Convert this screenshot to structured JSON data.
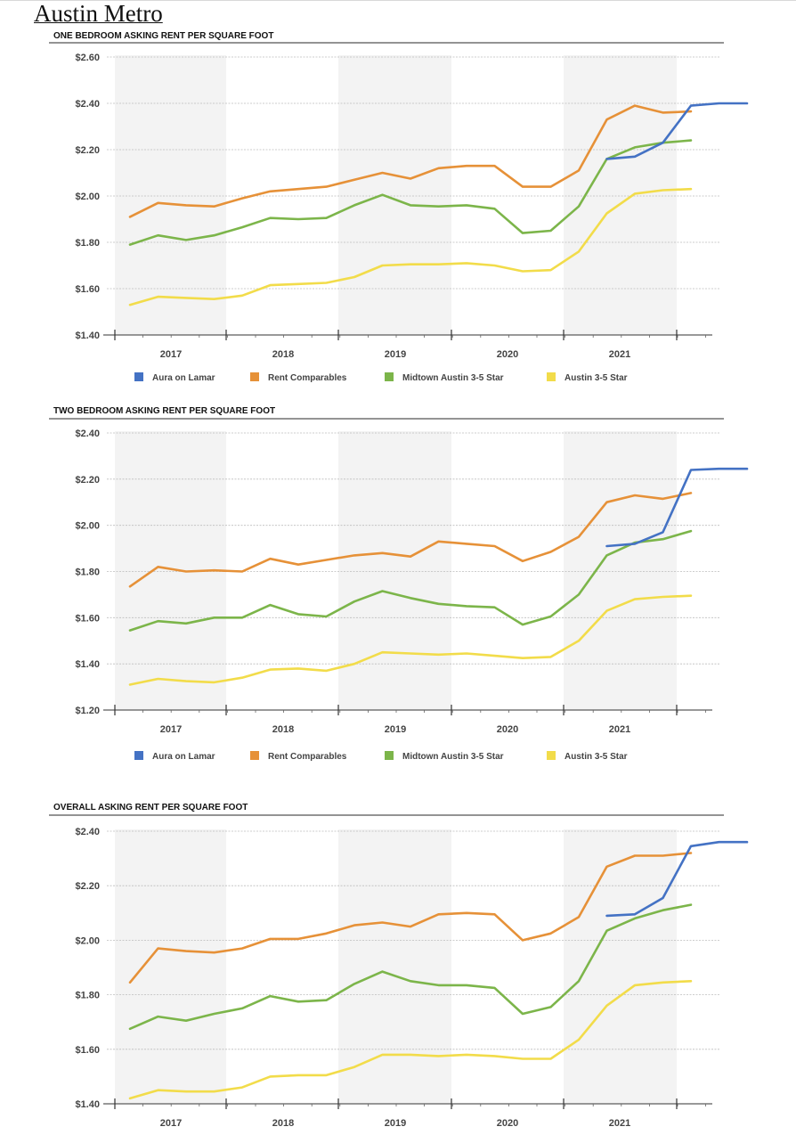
{
  "page": {
    "title": "Austin Metro"
  },
  "chart_data": [
    {
      "type": "line",
      "title": "ONE BEDROOM ASKING RENT PER SQUARE FOOT",
      "x": [
        "2016Q3",
        "2016Q4",
        "2017Q1",
        "2017Q2",
        "2017Q3",
        "2017Q4",
        "2018Q1",
        "2018Q2",
        "2018Q3",
        "2018Q4",
        "2019Q1",
        "2019Q2",
        "2019Q3",
        "2019Q4",
        "2020Q1",
        "2020Q2",
        "2020Q3",
        "2020Q4",
        "2021Q1",
        "2021Q2",
        "2021Q3",
        "2021Q4",
        "2022Q1"
      ],
      "year_labels": [
        "2017",
        "2018",
        "2019",
        "2020",
        "2021"
      ],
      "ylim": [
        1.4,
        2.6
      ],
      "yticks": [
        1.4,
        1.6,
        1.8,
        2.0,
        2.2,
        2.4,
        2.6
      ],
      "ytick_labels": [
        "$1.40",
        "$1.60",
        "$1.80",
        "$2.00",
        "$2.20",
        "$2.40",
        "$2.60"
      ],
      "series": [
        {
          "name": "Aura on Lamar",
          "color": "#4472c4",
          "values": [
            null,
            null,
            null,
            null,
            null,
            null,
            null,
            null,
            null,
            null,
            null,
            null,
            null,
            null,
            null,
            null,
            null,
            2.16,
            2.17,
            2.23,
            2.39,
            2.4,
            2.4
          ]
        },
        {
          "name": "Rent Comparables",
          "color": "#e69138",
          "values": [
            1.91,
            1.97,
            1.96,
            1.955,
            1.99,
            2.02,
            2.03,
            2.04,
            2.07,
            2.1,
            2.075,
            2.12,
            2.13,
            2.13,
            2.04,
            2.04,
            2.11,
            2.33,
            2.39,
            2.36,
            2.365,
            null,
            null
          ]
        },
        {
          "name": "Midtown Austin 3-5 Star",
          "color": "#7cb54a",
          "values": [
            1.79,
            1.83,
            1.81,
            1.83,
            1.865,
            1.905,
            1.9,
            1.905,
            1.96,
            2.005,
            1.96,
            1.955,
            1.96,
            1.945,
            1.84,
            1.85,
            1.955,
            2.16,
            2.21,
            2.23,
            2.24,
            null,
            null
          ]
        },
        {
          "name": "Austin 3-5 Star",
          "color": "#f2dc4a",
          "values": [
            1.53,
            1.565,
            1.56,
            1.555,
            1.57,
            1.615,
            1.62,
            1.625,
            1.65,
            1.7,
            1.705,
            1.705,
            1.71,
            1.7,
            1.675,
            1.68,
            1.76,
            1.925,
            2.01,
            2.025,
            2.03,
            null,
            null
          ]
        }
      ]
    },
    {
      "type": "line",
      "title": "TWO BEDROOM ASKING RENT PER SQUARE FOOT",
      "x": [
        "2016Q3",
        "2016Q4",
        "2017Q1",
        "2017Q2",
        "2017Q3",
        "2017Q4",
        "2018Q1",
        "2018Q2",
        "2018Q3",
        "2018Q4",
        "2019Q1",
        "2019Q2",
        "2019Q3",
        "2019Q4",
        "2020Q1",
        "2020Q2",
        "2020Q3",
        "2020Q4",
        "2021Q1",
        "2021Q2",
        "2021Q3",
        "2021Q4",
        "2022Q1"
      ],
      "year_labels": [
        "2017",
        "2018",
        "2019",
        "2020",
        "2021"
      ],
      "ylim": [
        1.2,
        2.4
      ],
      "yticks": [
        1.2,
        1.4,
        1.6,
        1.8,
        2.0,
        2.2,
        2.4
      ],
      "ytick_labels": [
        "$1.20",
        "$1.40",
        "$1.60",
        "$1.80",
        "$2.00",
        "$2.20",
        "$2.40"
      ],
      "series": [
        {
          "name": "Aura on Lamar",
          "color": "#4472c4",
          "values": [
            null,
            null,
            null,
            null,
            null,
            null,
            null,
            null,
            null,
            null,
            null,
            null,
            null,
            null,
            null,
            null,
            null,
            1.91,
            1.92,
            1.97,
            2.24,
            2.245,
            2.245
          ]
        },
        {
          "name": "Rent Comparables",
          "color": "#e69138",
          "values": [
            1.735,
            1.82,
            1.8,
            1.805,
            1.8,
            1.855,
            1.83,
            1.85,
            1.87,
            1.88,
            1.865,
            1.93,
            1.92,
            1.91,
            1.845,
            1.885,
            1.95,
            2.1,
            2.13,
            2.115,
            2.14,
            null,
            null
          ]
        },
        {
          "name": "Midtown Austin 3-5 Star",
          "color": "#7cb54a",
          "values": [
            1.545,
            1.585,
            1.575,
            1.6,
            1.6,
            1.655,
            1.615,
            1.605,
            1.67,
            1.715,
            1.685,
            1.66,
            1.65,
            1.645,
            1.57,
            1.605,
            1.7,
            1.87,
            1.925,
            1.94,
            1.975,
            null,
            null
          ]
        },
        {
          "name": "Austin 3-5 Star",
          "color": "#f2dc4a",
          "values": [
            1.31,
            1.335,
            1.325,
            1.32,
            1.34,
            1.375,
            1.38,
            1.37,
            1.4,
            1.45,
            1.445,
            1.44,
            1.445,
            1.435,
            1.425,
            1.43,
            1.5,
            1.63,
            1.68,
            1.69,
            1.695,
            null,
            null
          ]
        }
      ]
    },
    {
      "type": "line",
      "title": "OVERALL ASKING RENT PER SQUARE FOOT",
      "x": [
        "2016Q3",
        "2016Q4",
        "2017Q1",
        "2017Q2",
        "2017Q3",
        "2017Q4",
        "2018Q1",
        "2018Q2",
        "2018Q3",
        "2018Q4",
        "2019Q1",
        "2019Q2",
        "2019Q3",
        "2019Q4",
        "2020Q1",
        "2020Q2",
        "2020Q3",
        "2020Q4",
        "2021Q1",
        "2021Q2",
        "2021Q3",
        "2021Q4",
        "2022Q1"
      ],
      "year_labels": [
        "2017",
        "2018",
        "2019",
        "2020",
        "2021"
      ],
      "ylim": [
        1.4,
        2.4
      ],
      "yticks": [
        1.4,
        1.6,
        1.8,
        2.0,
        2.2,
        2.4
      ],
      "ytick_labels": [
        "$1.40",
        "$1.60",
        "$1.80",
        "$2.00",
        "$2.20",
        "$2.40"
      ],
      "series": [
        {
          "name": "Aura on Lamar",
          "color": "#4472c4",
          "values": [
            null,
            null,
            null,
            null,
            null,
            null,
            null,
            null,
            null,
            null,
            null,
            null,
            null,
            null,
            null,
            null,
            null,
            2.09,
            2.095,
            2.155,
            2.345,
            2.36,
            2.36
          ]
        },
        {
          "name": "Rent Comparables",
          "color": "#e69138",
          "values": [
            1.845,
            1.97,
            1.96,
            1.955,
            1.97,
            2.005,
            2.005,
            2.025,
            2.055,
            2.065,
            2.05,
            2.095,
            2.1,
            2.095,
            2.0,
            2.025,
            2.085,
            2.27,
            2.31,
            2.31,
            2.32,
            null,
            null
          ]
        },
        {
          "name": "Midtown Austin 3-5 Star",
          "color": "#7cb54a",
          "values": [
            1.675,
            1.72,
            1.705,
            1.73,
            1.75,
            1.795,
            1.775,
            1.78,
            1.84,
            1.885,
            1.85,
            1.835,
            1.835,
            1.825,
            1.73,
            1.755,
            1.85,
            2.035,
            2.08,
            2.11,
            2.13,
            null,
            null
          ]
        },
        {
          "name": "Austin 3-5 Star",
          "color": "#f2dc4a",
          "values": [
            1.42,
            1.45,
            1.445,
            1.445,
            1.46,
            1.5,
            1.505,
            1.505,
            1.535,
            1.58,
            1.58,
            1.575,
            1.58,
            1.575,
            1.565,
            1.565,
            1.635,
            1.76,
            1.835,
            1.845,
            1.85,
            null,
            null
          ]
        }
      ]
    }
  ],
  "legend": {
    "labels": [
      "Aura on Lamar",
      "Rent Comparables",
      "Midtown Austin 3-5 Star",
      "Austin 3-5 Star"
    ],
    "colors": [
      "#4472c4",
      "#e69138",
      "#7cb54a",
      "#f2dc4a"
    ]
  }
}
